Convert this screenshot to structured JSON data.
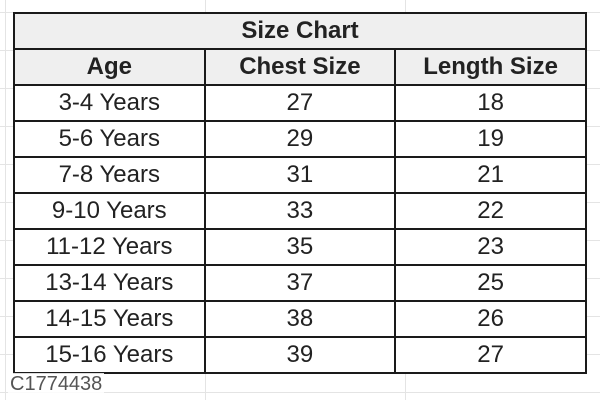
{
  "title": "Size Chart",
  "headers": [
    "Age",
    "Chest Size",
    "Length Size"
  ],
  "rows": [
    [
      "3-4 Years",
      "27",
      "18"
    ],
    [
      "5-6 Years",
      "29",
      "19"
    ],
    [
      "7-8 Years",
      "31",
      "21"
    ],
    [
      "9-10 Years",
      "33",
      "22"
    ],
    [
      "11-12 Years",
      "35",
      "23"
    ],
    [
      "13-14 Years",
      "37",
      "25"
    ],
    [
      "14-15 Years",
      "38",
      "26"
    ],
    [
      "15-16 Years",
      "39",
      "27"
    ]
  ],
  "watermark": "C1774438"
}
